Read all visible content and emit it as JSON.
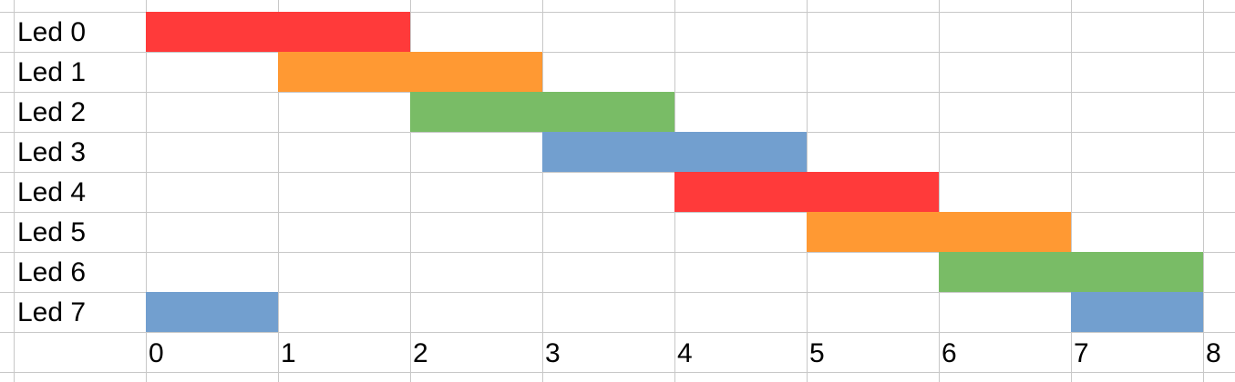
{
  "chart_data": {
    "type": "bar",
    "orientation": "horizontal-timeline",
    "x": [
      0,
      1,
      2,
      3,
      4,
      5,
      6,
      7,
      8
    ],
    "xlim": [
      0,
      8
    ],
    "grid": true,
    "rows": [
      "Led 0",
      "Led 1",
      "Led 2",
      "Led 3",
      "Led 4",
      "Led 5",
      "Led 6",
      "Led 7"
    ],
    "bars": [
      {
        "row": "Led 0",
        "start": 0,
        "end": 2,
        "color": "#ff3a3a"
      },
      {
        "row": "Led 1",
        "start": 1,
        "end": 3,
        "color": "#ff9933"
      },
      {
        "row": "Led 2",
        "start": 2,
        "end": 4,
        "color": "#79bc66"
      },
      {
        "row": "Led 3",
        "start": 3,
        "end": 5,
        "color": "#729fcf"
      },
      {
        "row": "Led 4",
        "start": 4,
        "end": 6,
        "color": "#ff3a3a"
      },
      {
        "row": "Led 5",
        "start": 5,
        "end": 7,
        "color": "#ff9933"
      },
      {
        "row": "Led 6",
        "start": 6,
        "end": 8,
        "color": "#79bc66"
      },
      {
        "row": "Led 7",
        "start": 7,
        "end": 8,
        "color": "#729fcf"
      },
      {
        "row": "Led 7",
        "start": 0,
        "end": 1,
        "color": "#729fcf"
      }
    ],
    "colors": {
      "red": "#ff3a3a",
      "orange": "#ff9933",
      "green": "#79bc66",
      "blue": "#729fcf",
      "grid": "#c8c8c8"
    }
  }
}
